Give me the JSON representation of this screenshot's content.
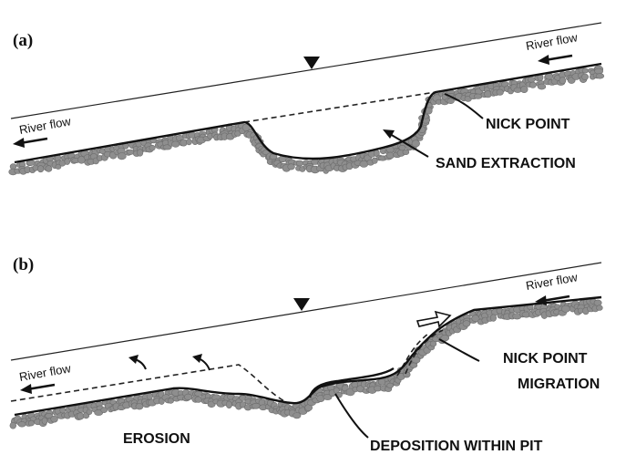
{
  "panel_a": {
    "label": "(a)",
    "flow_left": "River flow",
    "flow_right": "River flow",
    "nick_point": "NICK POINT",
    "sand_extraction": "SAND EXTRACTION",
    "water_surface_icon": "inverted-triangle-icon"
  },
  "panel_b": {
    "label": "(b)",
    "flow_left": "River flow",
    "flow_right": "River flow",
    "nick_point_line1": "NICK POINT",
    "nick_point_line2": "MIGRATION",
    "erosion": "EROSION",
    "deposition": "DEPOSITION WITHIN PIT",
    "water_surface_icon": "inverted-triangle-icon",
    "migration_arrow_icon": "hollow-arrow-icon"
  },
  "colors": {
    "gravel": "#8e8e8e",
    "line": "#111111"
  }
}
